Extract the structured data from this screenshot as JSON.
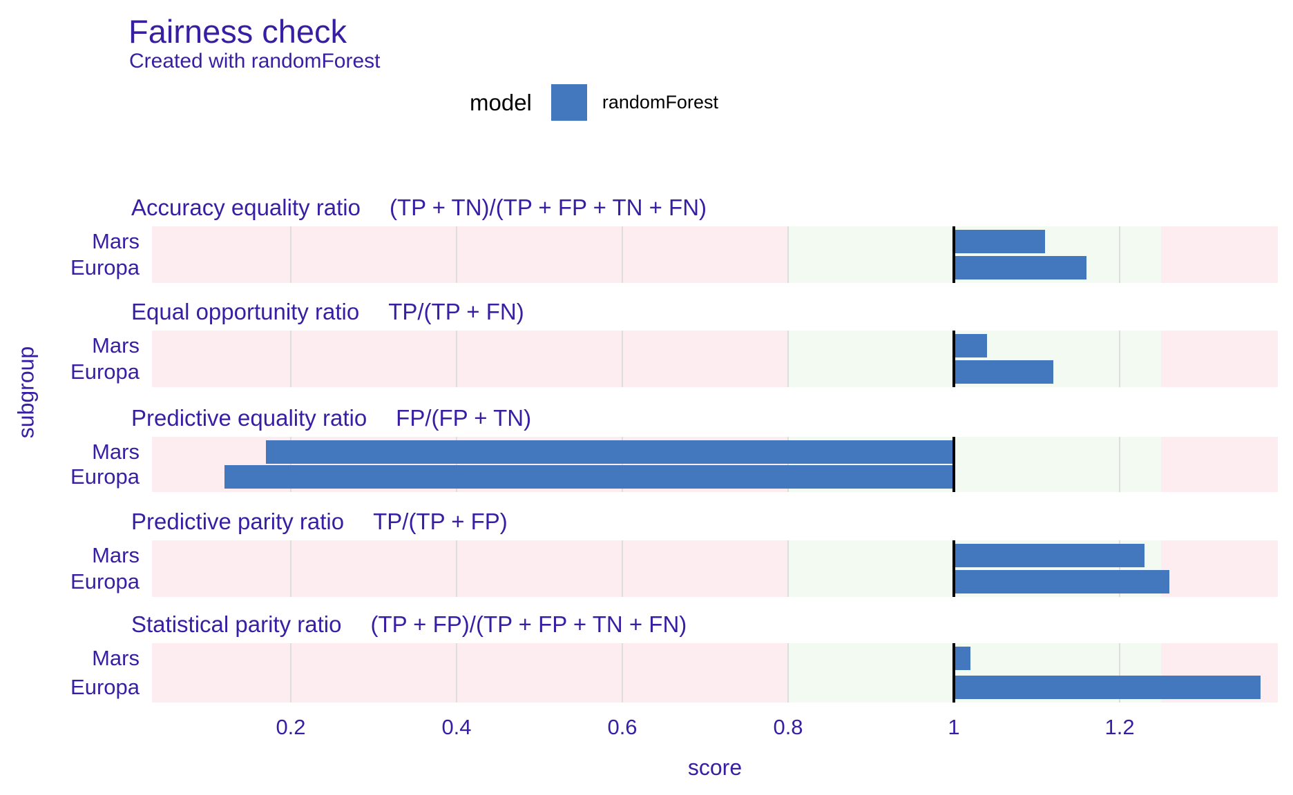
{
  "title": "Fairness check",
  "subtitle": "Created with randomForest",
  "legend": {
    "label": "model",
    "item": "randomForest",
    "swatch_color": "#4378bf"
  },
  "axes": {
    "x_label": "score",
    "y_label": "subgroup"
  },
  "colors": {
    "accent_text": "#371ea3",
    "bar": "#4378bf",
    "fair_zone_green": "#f3faf2",
    "unfair_zone_pink": "#fdedf0",
    "gridline": "#dedede",
    "reference_line": "#000000"
  },
  "chart_data": {
    "type": "bar",
    "orientation": "horizontal",
    "title": "Fairness check",
    "subtitle": "Created with randomForest",
    "xlabel": "score",
    "ylabel": "subgroup",
    "legend": {
      "title": "model",
      "position": "top",
      "entries": [
        "randomForest"
      ]
    },
    "categories": [
      "Mars",
      "Europa"
    ],
    "series": [
      {
        "name": "randomForest",
        "color": "#4378bf"
      }
    ],
    "panels": [
      {
        "metric": "Accuracy equality ratio",
        "formula": "(TP + TN)/(TP + FP + TN + FN)",
        "values": {
          "Mars": 1.11,
          "Europa": 1.16
        }
      },
      {
        "metric": "Equal opportunity ratio",
        "formula": "TP/(TP + FN)",
        "values": {
          "Mars": 1.04,
          "Europa": 1.12
        }
      },
      {
        "metric": "Predictive equality ratio",
        "formula": "FP/(FP + TN)",
        "values": {
          "Mars": 0.17,
          "Europa": 0.12
        }
      },
      {
        "metric": "Predictive parity ratio",
        "formula": "TP/(TP + FP)",
        "values": {
          "Mars": 1.23,
          "Europa": 1.26
        }
      },
      {
        "metric": "Statistical parity ratio",
        "formula": "(TP + FP)/(TP + FP + TN + FN)",
        "values": {
          "Mars": 1.02,
          "Europa": 1.37
        }
      }
    ],
    "bar_anchor": 1,
    "fair_band": [
      0.8,
      1.25
    ],
    "x_ticks": [
      0.2,
      0.4,
      0.6,
      0.8,
      1,
      1.2
    ],
    "x_tick_labels": [
      "0.2",
      "0.4",
      "0.6",
      "0.8",
      "1",
      "1.2"
    ],
    "x_range": [
      0.0325,
      1.3908
    ],
    "grid": true
  }
}
